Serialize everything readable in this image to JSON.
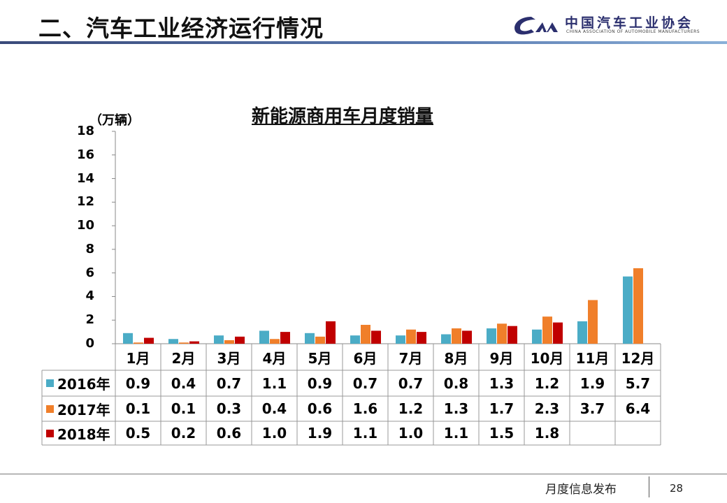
{
  "header": {
    "title": "二、汽车工业经济运行情况",
    "logo_text_cn": "中国汽车工业协会",
    "logo_text_en": "CHINA ASSOCIATION OF AUTOMOBILE MANUFACTURERS"
  },
  "footer": {
    "text": "月度信息发布",
    "page": "28"
  },
  "chart_data": {
    "type": "bar",
    "title": "新能源商用车月度销量",
    "ylabel": "（万辆）",
    "ylim": [
      0,
      18
    ],
    "yticks": [
      "0",
      "2",
      "4",
      "6",
      "8",
      "10",
      "12",
      "14",
      "16",
      "18"
    ],
    "categories": [
      "1月",
      "2月",
      "3月",
      "4月",
      "5月",
      "6月",
      "7月",
      "8月",
      "9月",
      "10月",
      "11月",
      "12月"
    ],
    "series": [
      {
        "name": "2016年",
        "color": "#4bacc6",
        "values": [
          0.9,
          0.4,
          0.7,
          1.1,
          0.9,
          0.7,
          0.7,
          0.8,
          1.3,
          1.2,
          1.9,
          5.7
        ],
        "labels": [
          "0.9",
          "0.4",
          "0.7",
          "1.1",
          "0.9",
          "0.7",
          "0.7",
          "0.8",
          "1.3",
          "1.2",
          "1.9",
          "5.7"
        ]
      },
      {
        "name": "2017年",
        "color": "#f07f2a",
        "values": [
          0.1,
          0.1,
          0.3,
          0.4,
          0.6,
          1.6,
          1.2,
          1.3,
          1.7,
          2.3,
          3.7,
          6.4
        ],
        "labels": [
          "0.1",
          "0.1",
          "0.3",
          "0.4",
          "0.6",
          "1.6",
          "1.2",
          "1.3",
          "1.7",
          "2.3",
          "3.7",
          "6.4"
        ]
      },
      {
        "name": "2018年",
        "color": "#c00000",
        "values": [
          0.5,
          0.2,
          0.6,
          1.0,
          1.9,
          1.1,
          1.0,
          1.1,
          1.5,
          1.8,
          null,
          null
        ],
        "labels": [
          "0.5",
          "0.2",
          "0.6",
          "1.0",
          "1.9",
          "1.1",
          "1.0",
          "1.1",
          "1.5",
          "1.8",
          "",
          ""
        ]
      }
    ],
    "legend": "table-left",
    "grid": false
  }
}
